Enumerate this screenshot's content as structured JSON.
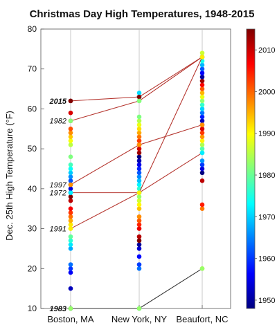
{
  "chart_data": {
    "type": "scatter",
    "title": "Christmas Day High Temperatures, 1948-2015",
    "xlabel": "",
    "ylabel": "Dec. 25th High Temperature (°F)",
    "ylim": [
      10,
      80
    ],
    "y_ticks": [
      10,
      20,
      30,
      40,
      50,
      60,
      70,
      80
    ],
    "categories": [
      "Boston, MA",
      "New York, NY",
      "Beaufort, NC"
    ],
    "colorbar": {
      "label_values": [
        1950,
        1960,
        1970,
        1980,
        1990,
        2000,
        2010
      ],
      "range": [
        1948,
        2015
      ],
      "colormap": [
        "#00007f",
        "#0000ff",
        "#007fff",
        "#00ffff",
        "#7fff7f",
        "#ffff00",
        "#ff7f00",
        "#ff0000",
        "#7f0000"
      ]
    },
    "points": [
      {
        "category": "Boston, MA",
        "values": [
          10,
          15,
          19,
          20,
          21,
          25,
          26,
          27,
          28,
          30,
          31,
          31,
          32,
          33,
          34,
          35,
          37,
          38,
          39,
          40,
          41,
          42,
          43,
          44,
          45,
          46,
          48,
          51,
          52,
          53,
          54,
          55,
          57,
          59,
          62
        ]
      },
      {
        "category": "New York, NY",
        "values": [
          10,
          20,
          21,
          23,
          25,
          26,
          27,
          28,
          30,
          31,
          32,
          33,
          35,
          36,
          37,
          38,
          39,
          40,
          41,
          42,
          43,
          44,
          45,
          46,
          47,
          48,
          49,
          50,
          51,
          52,
          53,
          54,
          55,
          56,
          57,
          58,
          62,
          63,
          64
        ]
      },
      {
        "category": "Beaufort, NC",
        "values": [
          20,
          35,
          36,
          42,
          44,
          45,
          46,
          47,
          49,
          50,
          51,
          52,
          53,
          54,
          55,
          56,
          57,
          58,
          59,
          60,
          61,
          62,
          63,
          64,
          65,
          66,
          67,
          68,
          69,
          70,
          71,
          72,
          73,
          74
        ]
      }
    ],
    "highlighted_years": [
      {
        "year": "2015",
        "values": [
          62,
          63,
          73
        ],
        "bold": true
      },
      {
        "year": "1982",
        "values": [
          57,
          62,
          73
        ],
        "bold": false
      },
      {
        "year": "1997",
        "values": [
          41,
          51,
          56
        ],
        "bold": false
      },
      {
        "year": "1972",
        "values": [
          39,
          39,
          49
        ],
        "bold": false
      },
      {
        "year": "1991",
        "values": [
          30,
          39,
          73
        ],
        "bold": false
      },
      {
        "year": "1983",
        "values": [
          10,
          10,
          20
        ],
        "bold": true
      }
    ]
  }
}
